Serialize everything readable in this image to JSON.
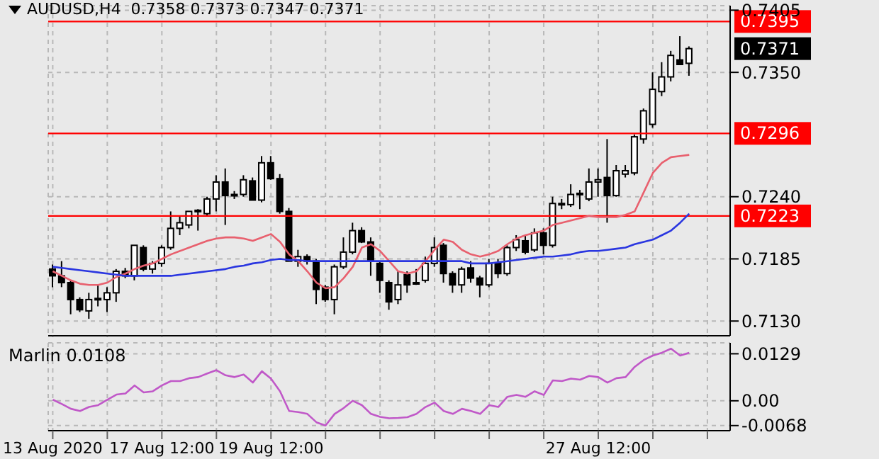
{
  "chart_data": [
    {
      "type": "candlestick",
      "title": "AUDUSD,H4  0.7358 0.7373 0.7347 0.7371",
      "grid": true,
      "categories": [
        null,
        null,
        null,
        null,
        null,
        null,
        null,
        null,
        null,
        null,
        null,
        null,
        null,
        null,
        null,
        null,
        null,
        null,
        null,
        null,
        null,
        null,
        null,
        null,
        null,
        null,
        null,
        null,
        null,
        null,
        null,
        null,
        null,
        null,
        null,
        null,
        null,
        null,
        null,
        null,
        null,
        null,
        null,
        null,
        null,
        null,
        null,
        null,
        null,
        null,
        null,
        null,
        null,
        null,
        null,
        null,
        null,
        null,
        null,
        null,
        null,
        null,
        null,
        null,
        null,
        null,
        null,
        null,
        null,
        null,
        null,
        null,
        null,
        null,
        null
      ],
      "ohlc": [
        [
          0.7176,
          0.718,
          0.716,
          0.717
        ],
        [
          0.717,
          0.7183,
          0.716,
          0.7164
        ],
        [
          0.7164,
          0.7166,
          0.7136,
          0.7149
        ],
        [
          0.7149,
          0.7151,
          0.7138,
          0.714
        ],
        [
          0.7139,
          0.7155,
          0.7132,
          0.7149
        ],
        [
          0.7149,
          0.7162,
          0.7143,
          0.715
        ],
        [
          0.7149,
          0.716,
          0.7138,
          0.7155
        ],
        [
          0.7155,
          0.7176,
          0.7147,
          0.7174
        ],
        [
          0.7174,
          0.7177,
          0.7168,
          0.717
        ],
        [
          0.717,
          0.7197,
          0.7166,
          0.7197
        ],
        [
          0.7195,
          0.7197,
          0.7174,
          0.7176
        ],
        [
          0.7176,
          0.7183,
          0.7172,
          0.7181
        ],
        [
          0.7181,
          0.7197,
          0.7178,
          0.7195
        ],
        [
          0.7195,
          0.7227,
          0.7193,
          0.7212
        ],
        [
          0.7212,
          0.7223,
          0.7206,
          0.7217
        ],
        [
          0.7215,
          0.7227,
          0.7212,
          0.7227
        ],
        [
          0.7227,
          0.7229,
          0.721,
          0.7228
        ],
        [
          0.7225,
          0.724,
          0.7223,
          0.7238
        ],
        [
          0.7238,
          0.7259,
          0.7227,
          0.7253
        ],
        [
          0.7253,
          0.7265,
          0.7215,
          0.7241
        ],
        [
          0.7241,
          0.7245,
          0.7238,
          0.7242
        ],
        [
          0.7242,
          0.7259,
          0.724,
          0.7255
        ],
        [
          0.7254,
          0.7257,
          0.7237,
          0.7237
        ],
        [
          0.7237,
          0.7276,
          0.7235,
          0.727
        ],
        [
          0.727,
          0.7276,
          0.7255,
          0.7256
        ],
        [
          0.7256,
          0.726,
          0.7225,
          0.7227
        ],
        [
          0.7227,
          0.723,
          0.7183,
          0.7183
        ],
        [
          0.7183,
          0.7193,
          0.7178,
          0.7187
        ],
        [
          0.7187,
          0.7189,
          0.718,
          0.7183
        ],
        [
          0.7183,
          0.7185,
          0.7145,
          0.7158
        ],
        [
          0.716,
          0.7162,
          0.7147,
          0.7149
        ],
        [
          0.7149,
          0.718,
          0.7136,
          0.7178
        ],
        [
          0.7178,
          0.7204,
          0.7176,
          0.7191
        ],
        [
          0.7191,
          0.7217,
          0.7189,
          0.721
        ],
        [
          0.721,
          0.7213,
          0.7199,
          0.72
        ],
        [
          0.72,
          0.7204,
          0.717,
          0.7183
        ],
        [
          0.7181,
          0.7183,
          0.7155,
          0.7166
        ],
        [
          0.7164,
          0.7166,
          0.714,
          0.7147
        ],
        [
          0.7149,
          0.7174,
          0.7145,
          0.7162
        ],
        [
          0.7171,
          0.7174,
          0.7155,
          0.7162
        ],
        [
          0.7164,
          0.7176,
          0.7162,
          0.7163
        ],
        [
          0.7166,
          0.7187,
          0.7164,
          0.7181
        ],
        [
          0.7181,
          0.7204,
          0.7178,
          0.7195
        ],
        [
          0.7197,
          0.7199,
          0.7164,
          0.7172
        ],
        [
          0.7172,
          0.7174,
          0.7155,
          0.7162
        ],
        [
          0.7162,
          0.7178,
          0.7155,
          0.7176
        ],
        [
          0.7177,
          0.7183,
          0.7164,
          0.7168
        ],
        [
          0.7168,
          0.717,
          0.7151,
          0.7162
        ],
        [
          0.7162,
          0.7185,
          0.716,
          0.7181
        ],
        [
          0.7181,
          0.7185,
          0.7168,
          0.7172
        ],
        [
          0.7172,
          0.7197,
          0.717,
          0.7195
        ],
        [
          0.7195,
          0.7206,
          0.7192,
          0.7202
        ],
        [
          0.7201,
          0.7206,
          0.7189,
          0.7191
        ],
        [
          0.7193,
          0.7212,
          0.7191,
          0.7208
        ],
        [
          0.7208,
          0.7212,
          0.7189,
          0.7197
        ],
        [
          0.7197,
          0.724,
          0.7195,
          0.7234
        ],
        [
          0.7233,
          0.7238,
          0.7229,
          0.7234
        ],
        [
          0.7233,
          0.7251,
          0.7231,
          0.7242
        ],
        [
          0.7242,
          0.7246,
          0.7229,
          0.7243
        ],
        [
          0.7238,
          0.7265,
          0.7236,
          0.7253
        ],
        [
          0.7253,
          0.7265,
          0.724,
          0.7255
        ],
        [
          0.7257,
          0.7291,
          0.7217,
          0.7241
        ],
        [
          0.7241,
          0.7268,
          0.724,
          0.7263
        ],
        [
          0.726,
          0.7268,
          0.7257,
          0.7263
        ],
        [
          0.7261,
          0.7295,
          0.7259,
          0.7293
        ],
        [
          0.7291,
          0.7318,
          0.7287,
          0.7316
        ],
        [
          0.7304,
          0.735,
          0.7301,
          0.7335
        ],
        [
          0.7333,
          0.7359,
          0.7329,
          0.7346
        ],
        [
          0.7346,
          0.7369,
          0.7342,
          0.7365
        ],
        [
          0.7361,
          0.7382,
          0.7357,
          0.7357
        ],
        [
          0.7358,
          0.7373,
          0.7347,
          0.7371
        ],
        null,
        null,
        null,
        null
      ],
      "series": [
        {
          "type": "line",
          "color": "#e8606e",
          "values": [
            0.7174,
            0.717,
            0.7166,
            0.7163,
            0.7162,
            0.7162,
            0.7164,
            0.7169,
            0.7172,
            0.7176,
            0.7179,
            0.7181,
            0.7185,
            0.7189,
            0.7192,
            0.7195,
            0.7198,
            0.7201,
            0.7203,
            0.7204,
            0.7204,
            0.7203,
            0.7201,
            0.7204,
            0.7207,
            0.72,
            0.7189,
            0.7183,
            0.7174,
            0.7164,
            0.7159,
            0.716,
            0.7168,
            0.7178,
            0.7195,
            0.7198,
            0.7192,
            0.7183,
            0.7174,
            0.7172,
            0.7174,
            0.7183,
            0.7193,
            0.7202,
            0.72,
            0.7193,
            0.7189,
            0.7187,
            0.7189,
            0.7192,
            0.7198,
            0.7203,
            0.7206,
            0.7208,
            0.721,
            0.7215,
            0.7217,
            0.7219,
            0.7221,
            0.7223,
            0.7222,
            0.7222,
            0.7222,
            0.7224,
            0.7227,
            0.7244,
            0.7261,
            0.727,
            0.7275,
            0.7276,
            0.7277,
            null,
            null,
            null,
            null
          ]
        },
        {
          "type": "line",
          "color": "#2a36e0",
          "values": [
            0.7178,
            0.7177,
            0.7176,
            0.7175,
            0.7174,
            0.7173,
            0.7172,
            0.7171,
            0.717,
            0.717,
            0.717,
            0.717,
            0.717,
            0.717,
            0.7171,
            0.7172,
            0.7173,
            0.7174,
            0.7175,
            0.7176,
            0.7178,
            0.7179,
            0.7181,
            0.7182,
            0.7184,
            0.7185,
            0.7184,
            0.7184,
            0.7183,
            0.7183,
            0.7183,
            0.7183,
            0.7183,
            0.7183,
            0.7183,
            0.7183,
            0.7183,
            0.7183,
            0.7183,
            0.7183,
            0.7183,
            0.7183,
            0.7183,
            0.7183,
            0.7183,
            0.7183,
            0.7181,
            0.7181,
            0.7181,
            0.7182,
            0.7183,
            0.7184,
            0.7185,
            0.7186,
            0.7187,
            0.7187,
            0.7188,
            0.7189,
            0.7191,
            0.7192,
            0.7192,
            0.7193,
            0.7194,
            0.7195,
            0.7198,
            0.72,
            0.7202,
            0.7206,
            0.721,
            0.7217,
            0.7225,
            null,
            null,
            null,
            null
          ]
        }
      ],
      "ylim": [
        0.7117,
        0.7409
      ],
      "yticks": [
        0.7405,
        {
          "value": 0.735,
          "label": "0.7350"
        },
        {
          "value": 0.724,
          "label": "0.7240"
        },
        0.7185,
        {
          "value": 0.713,
          "label": "0.7130"
        }
      ],
      "ref_lines": [
        {
          "axis": "y",
          "value": 0.7395,
          "label": "0.7395",
          "color": "#ff0000"
        },
        {
          "axis": "y",
          "value": 0.7296,
          "label": "0.7296",
          "color": "#ff0000"
        },
        {
          "axis": "y",
          "value": 0.7223,
          "label": "0.7223",
          "color": "#ff0000"
        }
      ],
      "annotations": [
        "0.7371"
      ]
    },
    {
      "type": "line",
      "title": "Marlin 0.0108",
      "grid": true,
      "color": "#c058c8",
      "categories": [
        "13 Aug 2020",
        null,
        null,
        null,
        null,
        null,
        null,
        null,
        null,
        null,
        null,
        null,
        "17 Aug 12:00",
        null,
        null,
        null,
        null,
        null,
        null,
        null,
        null,
        null,
        null,
        null,
        "19 Aug 12:00",
        null,
        null,
        null,
        null,
        null,
        null,
        null,
        null,
        null,
        null,
        null,
        null,
        null,
        null,
        null,
        null,
        null,
        null,
        null,
        null,
        null,
        null,
        null,
        null,
        null,
        null,
        null,
        null,
        null,
        null,
        null,
        null,
        null,
        null,
        null,
        "27 Aug 12:00",
        null,
        null,
        null,
        null,
        null,
        null,
        null,
        null,
        null,
        null,
        null,
        null,
        null,
        null
      ],
      "values": [
        0.0003,
        -0.0009,
        -0.0022,
        -0.0028,
        -0.0017,
        -0.0012,
        0.0003,
        0.0017,
        0.002,
        0.0042,
        0.0023,
        0.0026,
        0.0042,
        0.0054,
        0.0054,
        0.0062,
        0.0065,
        0.0075,
        0.0084,
        0.007,
        0.0065,
        0.0072,
        0.005,
        0.0081,
        0.0061,
        0.0026,
        -0.0028,
        -0.0031,
        -0.0036,
        -0.0059,
        -0.0068,
        -0.0036,
        -0.002,
        0.0,
        -0.0012,
        -0.0036,
        -0.0044,
        -0.0048,
        -0.0047,
        -0.0045,
        -0.0036,
        -0.0017,
        -0.0005,
        -0.0028,
        -0.0036,
        -0.0022,
        -0.0028,
        -0.0036,
        -0.0012,
        -0.0017,
        0.0011,
        0.0016,
        0.0011,
        0.0026,
        0.0016,
        0.0056,
        0.0054,
        0.0061,
        0.0058,
        0.0068,
        0.0065,
        0.005,
        0.0062,
        0.0065,
        0.0093,
        0.0112,
        0.0124,
        0.0132,
        0.0143,
        0.0124,
        0.0132,
        null,
        null,
        null,
        null
      ],
      "ylim": [
        -0.0082,
        0.0159
      ],
      "yticks": [
        0.0129,
        {
          "value": 0,
          "label": "0.00"
        },
        -0.0068
      ]
    }
  ]
}
